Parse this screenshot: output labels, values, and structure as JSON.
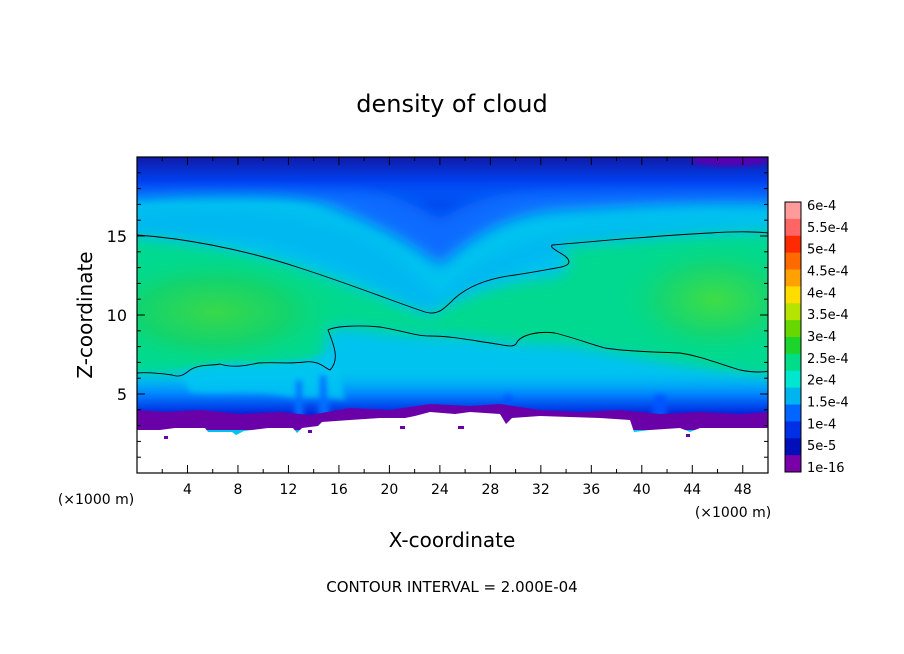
{
  "chart_data": {
    "type": "heatmap",
    "title": "density of cloud",
    "xlabel": "X-coordinate",
    "ylabel": "Z-coordinate",
    "x_unit": "(×1000 m)",
    "z_unit": "(×1000 m)",
    "xlim": [
      0,
      50
    ],
    "ylim": [
      0,
      20
    ],
    "x_ticks": [
      4,
      8,
      12,
      16,
      20,
      24,
      28,
      32,
      36,
      40,
      44,
      48
    ],
    "y_ticks": [
      5,
      10,
      15
    ],
    "footer": "CONTOUR INTERVAL = 2.000E-04",
    "grid": false,
    "colorbar": {
      "placement": "right",
      "labels": [
        "6e-4",
        "5.5e-4",
        "5e-4",
        "4.5e-4",
        "4e-4",
        "3.5e-4",
        "3e-4",
        "2.5e-4",
        "2e-4",
        "1.5e-4",
        "1e-4",
        "5e-5",
        "1e-16"
      ],
      "colors": [
        "#ff9b9b",
        "#ff6565",
        "#ff2a00",
        "#ff6a00",
        "#ffa100",
        "#ffdd00",
        "#b5e400",
        "#66d800",
        "#1cd42c",
        "#00dd88",
        "#00e6cf",
        "#00b4f0",
        "#0066ff",
        "#0030e6",
        "#000fb8",
        "#7a00a8"
      ]
    },
    "contour_level": "2e-4",
    "ground_height_approx": 3
  }
}
